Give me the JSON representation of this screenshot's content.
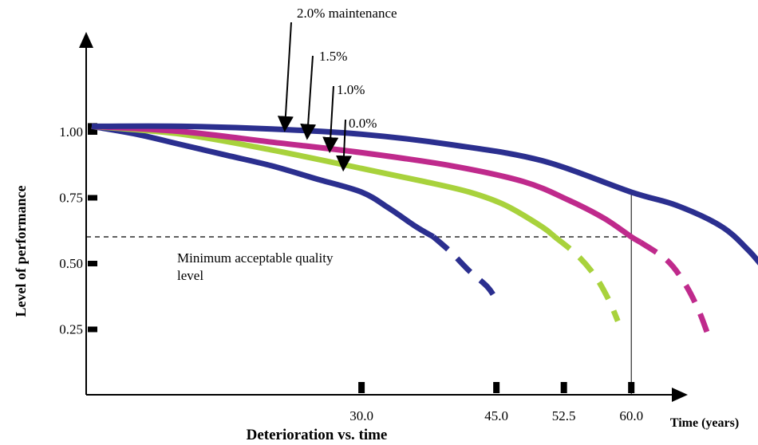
{
  "chart_data": {
    "type": "line",
    "title": "",
    "xlabel": "Deterioration vs. time",
    "x_axis_unit_label": "Time (years)",
    "ylabel": "Level of performance",
    "xlim": [
      0,
      68
    ],
    "ylim": [
      0,
      1.12
    ],
    "x_ticks": [
      "30.0",
      "45.0",
      "52.5",
      "60.0"
    ],
    "y_ticks": [
      "1.00",
      "0.75",
      "0.50",
      "0.25"
    ],
    "y_tick_values": [
      1.0,
      0.75,
      0.5,
      0.25
    ],
    "threshold": {
      "value": 0.6,
      "label": "Minimum acceptable quality level",
      "style": "dashed",
      "drop_line_x": 60
    },
    "series": [
      {
        "name": "0.0%",
        "color": "#2b2f8f",
        "solid": [
          [
            0,
            1.02
          ],
          [
            5,
            0.99
          ],
          [
            10,
            0.95
          ],
          [
            15,
            0.91
          ],
          [
            20,
            0.87
          ],
          [
            25,
            0.82
          ],
          [
            30,
            0.77
          ],
          [
            33,
            0.71
          ],
          [
            36,
            0.64
          ],
          [
            38,
            0.6
          ]
        ],
        "dashed": [
          [
            38,
            0.6
          ],
          [
            40,
            0.54
          ],
          [
            42,
            0.47
          ],
          [
            44,
            0.41
          ],
          [
            45,
            0.36
          ]
        ]
      },
      {
        "name": "1.0%",
        "color": "#a8d23c",
        "solid": [
          [
            0,
            1.02
          ],
          [
            10,
            0.99
          ],
          [
            20,
            0.93
          ],
          [
            30,
            0.86
          ],
          [
            37,
            0.81
          ],
          [
            42,
            0.77
          ],
          [
            46,
            0.72
          ],
          [
            50,
            0.64
          ],
          [
            51.5,
            0.6
          ]
        ],
        "dashed": [
          [
            51.5,
            0.6
          ],
          [
            54,
            0.53
          ],
          [
            56,
            0.45
          ],
          [
            57.5,
            0.36
          ],
          [
            58.5,
            0.28
          ]
        ]
      },
      {
        "name": "1.5%",
        "color": "#bf2a8c",
        "solid": [
          [
            0,
            1.02
          ],
          [
            10,
            1.0
          ],
          [
            20,
            0.96
          ],
          [
            30,
            0.92
          ],
          [
            40,
            0.87
          ],
          [
            48,
            0.81
          ],
          [
            53,
            0.74
          ],
          [
            57,
            0.67
          ],
          [
            60,
            0.6
          ],
          [
            61,
            0.58
          ]
        ],
        "dashed": [
          [
            61,
            0.58
          ],
          [
            64,
            0.51
          ],
          [
            66,
            0.42
          ],
          [
            67.5,
            0.32
          ],
          [
            68.5,
            0.23
          ]
        ]
      },
      {
        "name": "2.0% maintenance",
        "color": "#2b2f8f",
        "solid": [
          [
            0,
            1.02
          ],
          [
            10,
            1.02
          ],
          [
            20,
            1.01
          ],
          [
            30,
            0.99
          ],
          [
            40,
            0.95
          ],
          [
            50,
            0.89
          ],
          [
            60,
            0.77
          ],
          [
            65,
            0.72
          ],
          [
            70,
            0.64
          ],
          [
            73,
            0.55
          ],
          [
            75,
            0.47
          ]
        ],
        "dashed": []
      }
    ],
    "annotations": [
      {
        "text": "2.0% maintenance",
        "arrow_to": [
          21.5,
          1.01
        ]
      },
      {
        "text": "1.5%",
        "arrow_to": [
          24,
          0.98
        ]
      },
      {
        "text": "1.0%",
        "arrow_to": [
          26.5,
          0.93
        ]
      },
      {
        "text": "0.0%",
        "arrow_to": [
          28,
          0.86
        ]
      }
    ]
  }
}
